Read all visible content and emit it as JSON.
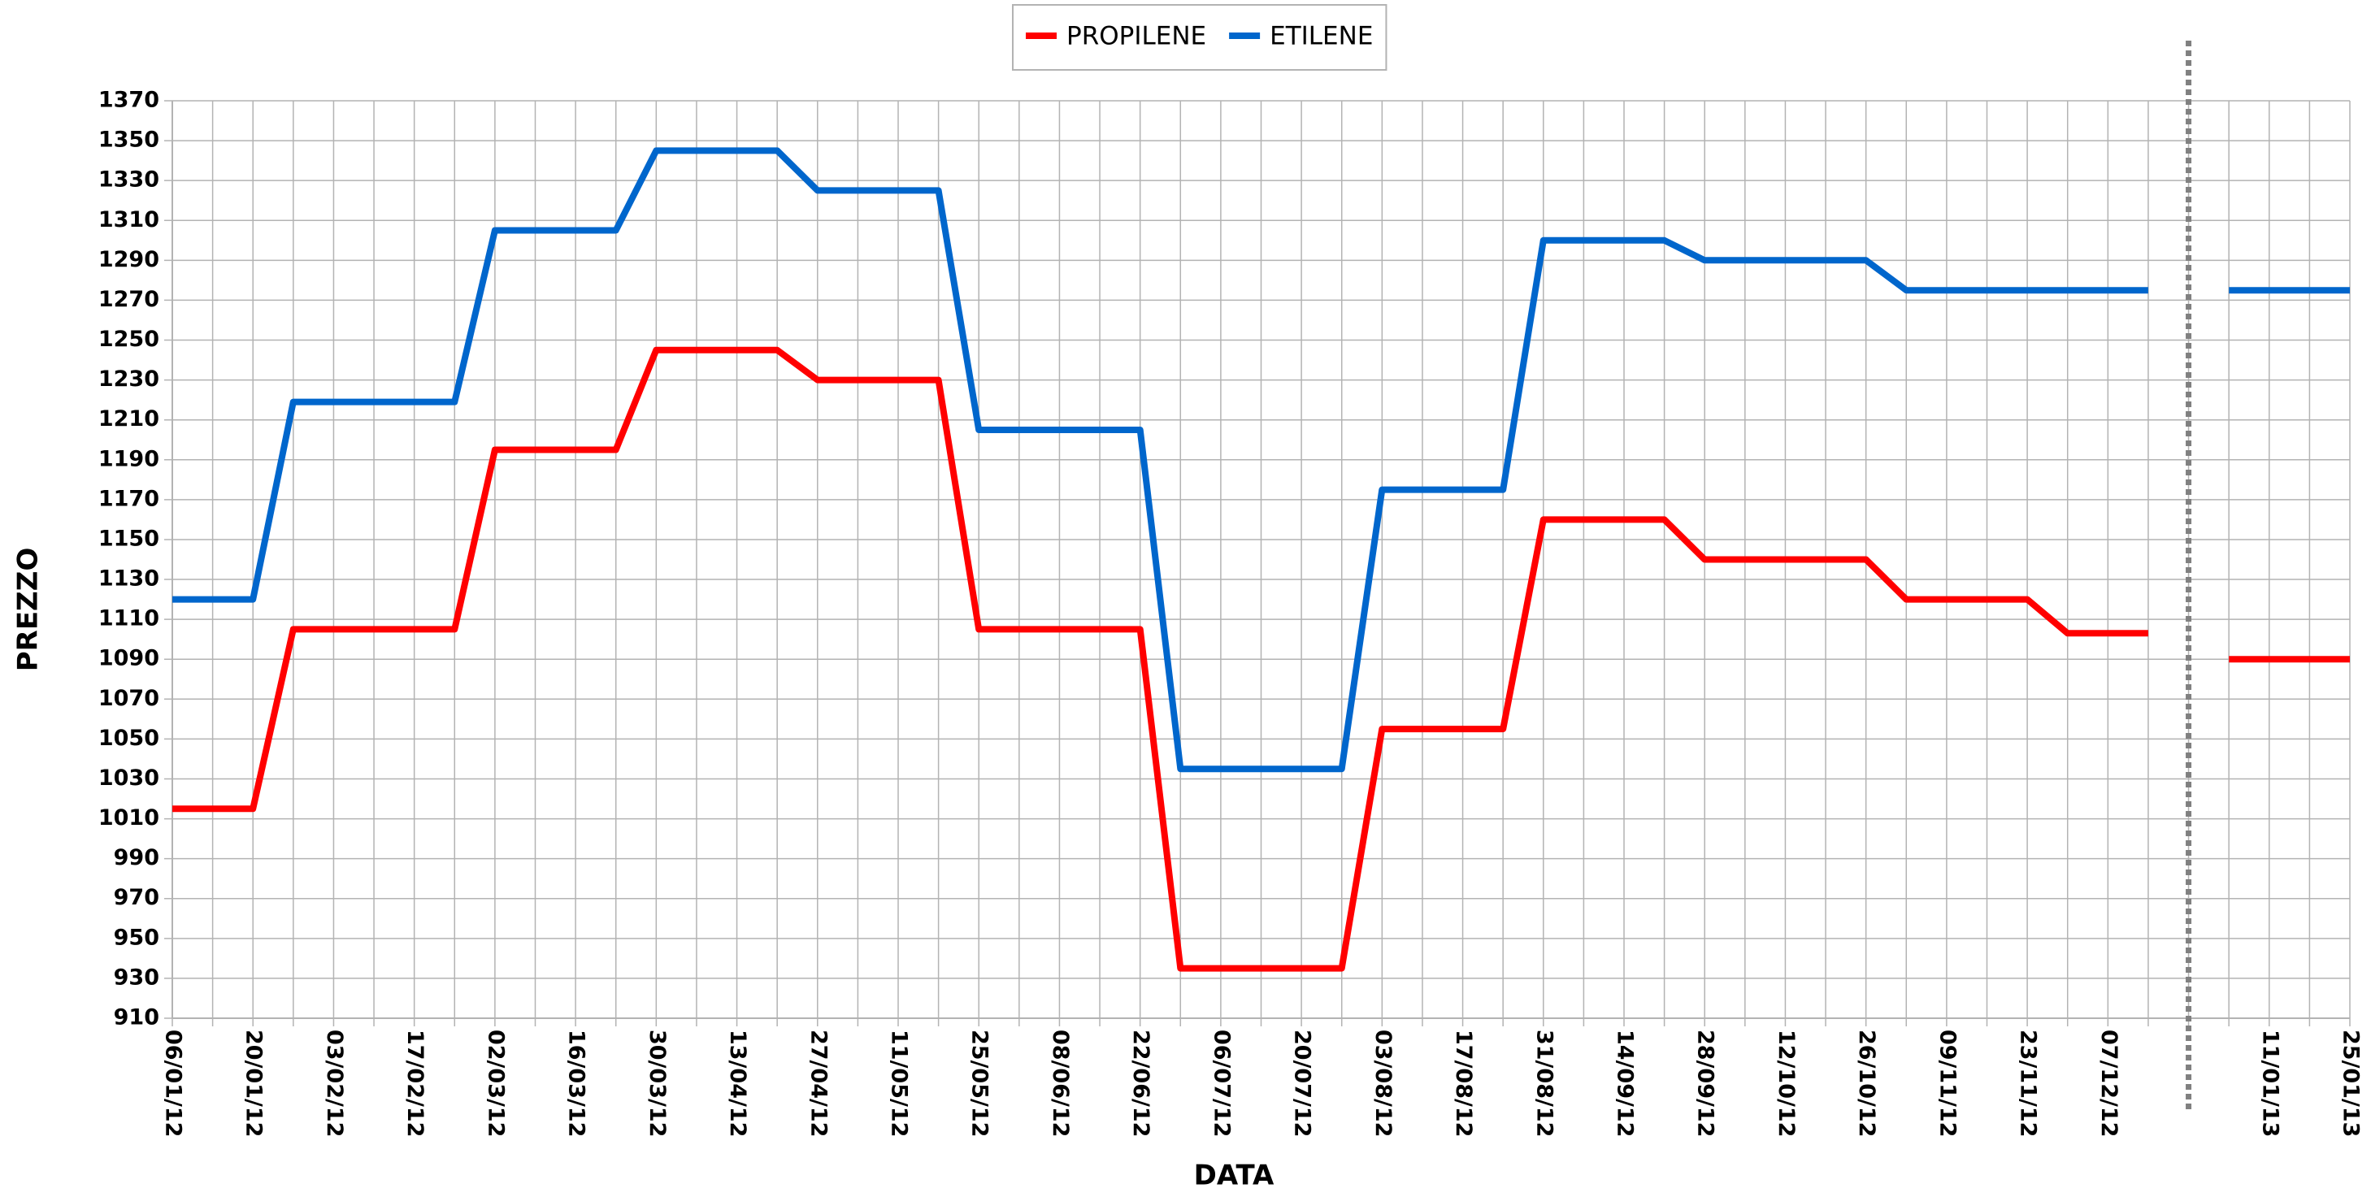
{
  "chart_data": {
    "type": "line",
    "x_label": "DATA",
    "y_label": "PREZZO",
    "categories": [
      "06/01/12",
      null,
      "20/01/12",
      null,
      "03/02/12",
      null,
      "17/02/12",
      null,
      "02/03/12",
      null,
      "16/03/12",
      null,
      "30/03/12",
      null,
      "13/04/12",
      null,
      "27/04/12",
      null,
      "11/05/12",
      null,
      "25/05/12",
      null,
      "08/06/12",
      null,
      "22/06/12",
      null,
      "06/07/12",
      null,
      "20/07/12",
      null,
      "03/08/12",
      null,
      "17/08/12",
      null,
      "31/08/12",
      null,
      "14/09/12",
      null,
      "28/09/12",
      null,
      "12/10/12",
      null,
      "26/10/12",
      null,
      "09/11/12",
      null,
      "23/11/12",
      null,
      "07/12/12",
      null,
      null,
      null,
      "11/01/13",
      null,
      "25/01/13"
    ],
    "series": [
      {
        "name": "PROPILENE",
        "color": "#ff0000",
        "values": [
          1015,
          1015,
          1015,
          1105,
          1105,
          1105,
          1105,
          1105,
          1195,
          1195,
          1195,
          1195,
          1245,
          1245,
          1245,
          1245,
          1230,
          1230,
          1230,
          1230,
          1105,
          1105,
          1105,
          1105,
          1105,
          935,
          935,
          935,
          935,
          935,
          1055,
          1055,
          1055,
          1055,
          1160,
          1160,
          1160,
          1160,
          1140,
          1140,
          1140,
          1140,
          1140,
          1120,
          1120,
          1120,
          1120,
          1103,
          1103,
          1103,
          null,
          1090,
          1090,
          1090,
          1090
        ]
      },
      {
        "name": "ETILENE",
        "color": "#0066cc",
        "values": [
          1120,
          1120,
          1120,
          1219,
          1219,
          1219,
          1219,
          1219,
          1305,
          1305,
          1305,
          1305,
          1345,
          1345,
          1345,
          1345,
          1325,
          1325,
          1325,
          1325,
          1205,
          1205,
          1205,
          1205,
          1205,
          1035,
          1035,
          1035,
          1035,
          1035,
          1175,
          1175,
          1175,
          1175,
          1300,
          1300,
          1300,
          1300,
          1290,
          1290,
          1290,
          1290,
          1290,
          1275,
          1275,
          1275,
          1275,
          1275,
          1275,
          1275,
          null,
          1275,
          1275,
          1275,
          1275
        ]
      }
    ],
    "ylim": [
      910,
      1370
    ],
    "yticks": [
      910,
      930,
      950,
      970,
      990,
      1010,
      1030,
      1050,
      1070,
      1090,
      1110,
      1130,
      1150,
      1170,
      1190,
      1210,
      1230,
      1250,
      1270,
      1290,
      1310,
      1330,
      1350,
      1370
    ],
    "grid": true,
    "legend": "top"
  }
}
